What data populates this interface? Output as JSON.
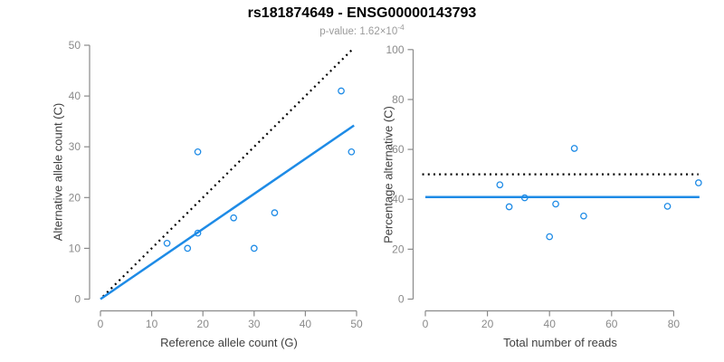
{
  "header": {
    "title": "rs181874649 - ENSG00000143793",
    "subtitle_base": "p-value: 1.62×10",
    "subtitle_exponent": "-4"
  },
  "colors": {
    "accent_blue": "#1e8be6",
    "line_black": "#000000",
    "axis_gray": "#8a8a8a",
    "tick_label_gray": "#8a8a8a",
    "axis_title_dark": "#3f3f3f",
    "subtitle_gray": "#9b9b9b"
  },
  "chart_data": [
    {
      "type": "scatter",
      "name": "allele-count-scatter",
      "xlabel": "Reference allele count (G)",
      "ylabel": "Alternative allele count (C)",
      "xlim": [
        0,
        50
      ],
      "ylim": [
        0,
        50
      ],
      "xticks": [
        0,
        10,
        20,
        30,
        40,
        50
      ],
      "yticks": [
        0,
        10,
        20,
        30,
        40,
        50
      ],
      "grid": false,
      "legend": false,
      "points": [
        [
          13,
          11
        ],
        [
          17,
          10
        ],
        [
          19,
          13
        ],
        [
          19,
          29
        ],
        [
          26,
          16
        ],
        [
          30,
          10
        ],
        [
          34,
          17
        ],
        [
          47,
          41
        ],
        [
          49,
          29
        ]
      ],
      "lines": [
        {
          "name": "identity-line",
          "style": "dotted",
          "color": "black",
          "x": [
            0.5,
            49
          ],
          "y": [
            0.5,
            49
          ]
        },
        {
          "name": "regression-line",
          "style": "solid",
          "color": "blue",
          "x": [
            0,
            49.5
          ],
          "y": [
            0,
            34.2
          ]
        }
      ]
    },
    {
      "type": "scatter",
      "name": "percentage-alternative-scatter",
      "xlabel": "Total number of reads",
      "ylabel": "Percentage alternative (C)",
      "xlim": [
        0,
        90
      ],
      "ylim": [
        0,
        100
      ],
      "xticks": [
        0,
        20,
        40,
        60,
        80
      ],
      "yticks": [
        0,
        20,
        40,
        60,
        80,
        100
      ],
      "grid": false,
      "legend": false,
      "points": [
        [
          24,
          45.8
        ],
        [
          27,
          37.0
        ],
        [
          32,
          40.6
        ],
        [
          40,
          25.0
        ],
        [
          42,
          38.1
        ],
        [
          48,
          60.4
        ],
        [
          51,
          33.3
        ],
        [
          78,
          37.2
        ],
        [
          88,
          46.6
        ]
      ],
      "lines": [
        {
          "name": "fifty-percent-line",
          "style": "dotted",
          "color": "black",
          "x": [
            -1,
            88
          ],
          "y": [
            50,
            50
          ]
        },
        {
          "name": "mean-percentage-line",
          "style": "solid",
          "color": "blue",
          "x": [
            0,
            88.3
          ],
          "y": [
            40.9,
            40.9
          ]
        }
      ]
    }
  ]
}
